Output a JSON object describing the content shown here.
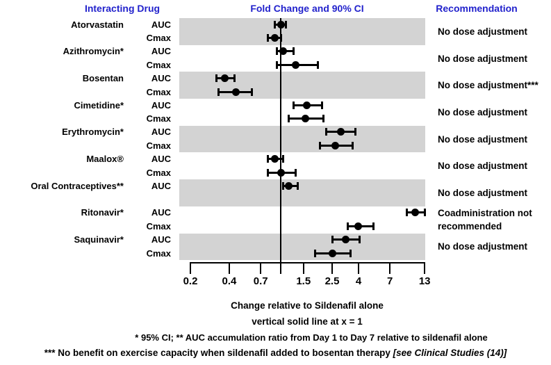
{
  "colors": {
    "header_blue": "#2222cc",
    "band_gray": "#d3d3d3",
    "marker_black": "#000000"
  },
  "header": {
    "col1": "Interacting Drug",
    "col2": "Fold Change and 90% CI",
    "col3": "Recommendation"
  },
  "chart_data": {
    "type": "forest",
    "title": "Fold Change and 90% CI",
    "x_scale": "log",
    "x_range": [
      0.2,
      13
    ],
    "reference_line_x": 1,
    "axis_label": "Change relative to Sildenafil alone",
    "axis_note": "vertical solid line at x = 1",
    "x_ticks": [
      {
        "label": "0.2",
        "value": 0.2
      },
      {
        "label": "0.4",
        "value": 0.4
      },
      {
        "label": "0.7",
        "value": 0.7
      },
      {
        "label": "",
        "value": 1
      },
      {
        "label": "1.5",
        "value": 1.5
      },
      {
        "label": "2.5",
        "value": 2.5
      },
      {
        "label": "4",
        "value": 4
      },
      {
        "label": "7",
        "value": 7
      },
      {
        "label": "13",
        "value": 13
      }
    ],
    "drugs": [
      {
        "name": "Atorvastatin",
        "recommendation": "No dose adjustment",
        "measurements": [
          {
            "param": "AUC",
            "value": 1.0,
            "ci_low": 0.9,
            "ci_high": 1.1
          },
          {
            "param": "Cmax",
            "value": 0.9,
            "ci_low": 0.8,
            "ci_high": 1.0
          }
        ]
      },
      {
        "name": "Azithromycin*",
        "recommendation": "No dose adjustment",
        "measurements": [
          {
            "param": "AUC",
            "value": 1.05,
            "ci_low": 0.93,
            "ci_high": 1.25
          },
          {
            "param": "Cmax",
            "value": 1.3,
            "ci_low": 0.93,
            "ci_high": 1.95
          }
        ]
      },
      {
        "name": "Bosentan",
        "recommendation": "No dose adjustment***",
        "measurements": [
          {
            "param": "AUC",
            "value": 0.37,
            "ci_low": 0.32,
            "ci_high": 0.44
          },
          {
            "param": "Cmax",
            "value": 0.45,
            "ci_low": 0.33,
            "ci_high": 0.6
          }
        ]
      },
      {
        "name": "Cimetidine*",
        "recommendation": "No dose adjustment",
        "measurements": [
          {
            "param": "AUC",
            "value": 1.6,
            "ci_low": 1.25,
            "ci_high": 2.1
          },
          {
            "param": "Cmax",
            "value": 1.55,
            "ci_low": 1.15,
            "ci_high": 2.15
          }
        ]
      },
      {
        "name": "Erythromycin*",
        "recommendation": "No dose adjustment",
        "measurements": [
          {
            "param": "AUC",
            "value": 2.9,
            "ci_low": 2.25,
            "ci_high": 3.8
          },
          {
            "param": "Cmax",
            "value": 2.65,
            "ci_low": 2.0,
            "ci_high": 3.6
          }
        ]
      },
      {
        "name": "Maalox®",
        "recommendation": "No dose adjustment",
        "measurements": [
          {
            "param": "AUC",
            "value": 0.9,
            "ci_low": 0.8,
            "ci_high": 1.05
          },
          {
            "param": "Cmax",
            "value": 1.0,
            "ci_low": 0.8,
            "ci_high": 1.3
          }
        ]
      },
      {
        "name": "Oral Contraceptives**",
        "recommendation": "No dose adjustment",
        "measurements": [
          {
            "param": "AUC",
            "value": 1.15,
            "ci_low": 1.05,
            "ci_high": 1.35
          }
        ]
      },
      {
        "name": "Ritonavir*",
        "recommendation": "Coadministration not recommended",
        "measurements": [
          {
            "param": "AUC",
            "value": 11.0,
            "ci_low": 9.4,
            "ci_high": 13.0
          },
          {
            "param": "Cmax",
            "value": 4.0,
            "ci_low": 3.3,
            "ci_high": 5.2
          }
        ]
      },
      {
        "name": "Saquinavir*",
        "recommendation": "No dose adjustment",
        "measurements": [
          {
            "param": "AUC",
            "value": 3.2,
            "ci_low": 2.5,
            "ci_high": 4.1
          },
          {
            "param": "Cmax",
            "value": 2.5,
            "ci_low": 1.85,
            "ci_high": 3.45
          }
        ]
      }
    ]
  },
  "footnotes": {
    "line1": "* 95% CI;  ** AUC accumulation ratio from Day 1 to Day 7 relative to sildenafil alone",
    "line2_text": "*** No benefit on exercise capacity when sildenafil added to bosentan therapy",
    "line2_italic": "[see Clinical Studies (14)]"
  }
}
